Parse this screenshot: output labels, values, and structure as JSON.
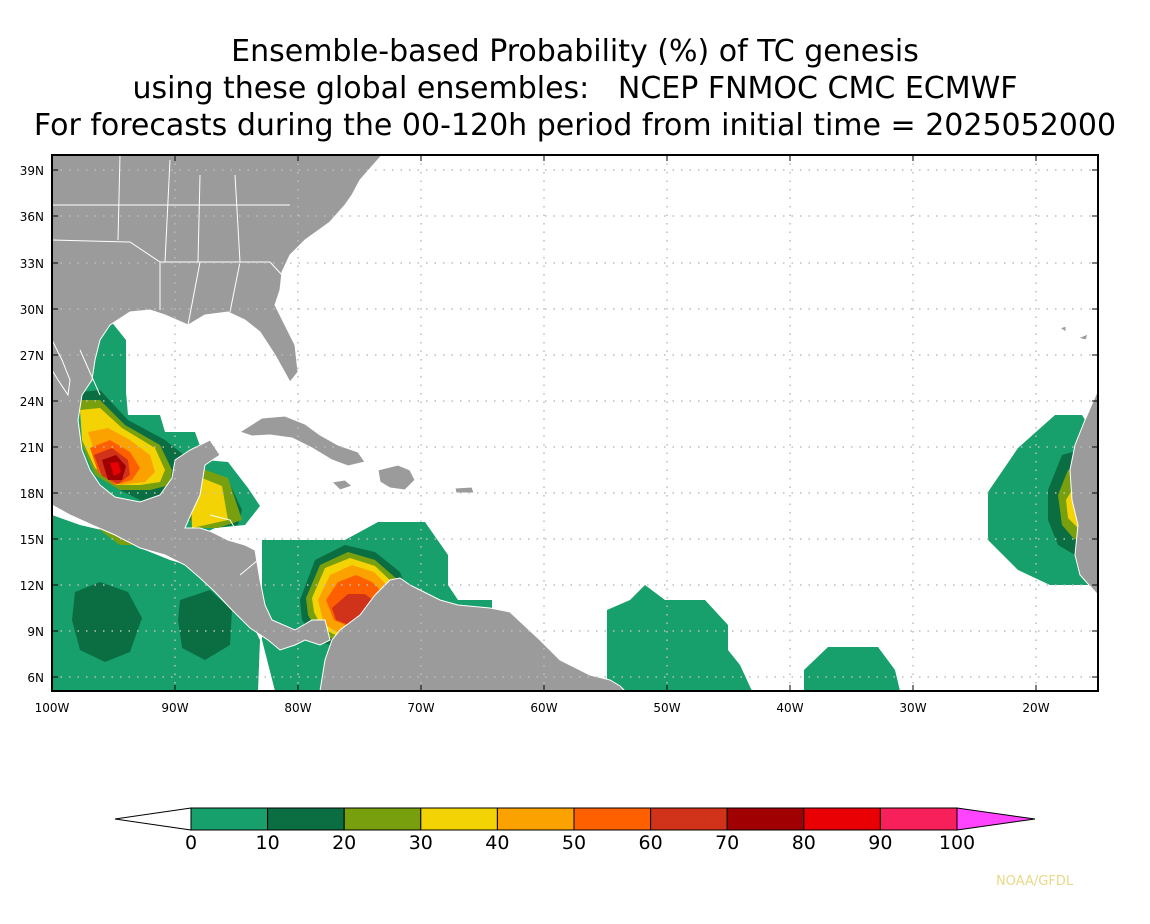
{
  "title": {
    "line1": "Ensemble-based Probability (%) of TC genesis",
    "line2": "using these global ensembles:   NCEP FNMOC CMC ECMWF",
    "line3": "For forecasts during the 00-120h period from initial time = 2025052000"
  },
  "map": {
    "lon_range": [
      -100,
      -15
    ],
    "lat_range": [
      5,
      40
    ],
    "lat_ticks": [
      "39N",
      "36N",
      "33N",
      "30N",
      "27N",
      "24N",
      "21N",
      "18N",
      "15N",
      "12N",
      "9N",
      "6N"
    ],
    "lon_ticks": [
      "100W",
      "90W",
      "80W",
      "70W",
      "60W",
      "50W",
      "40W",
      "30W",
      "20W"
    ],
    "colors": {
      "land": "#9b9b9b",
      "ocean": "#ffffff",
      "border": "#ffffff",
      "grid": "#bdbdbd"
    }
  },
  "colorbar": {
    "labels": [
      "0",
      "10",
      "20",
      "30",
      "40",
      "50",
      "60",
      "70",
      "80",
      "90",
      "100"
    ],
    "colors": [
      "#17a06b",
      "#0b6e43",
      "#78a00e",
      "#f4d305",
      "#fca200",
      "#fe6000",
      "#d0321a",
      "#a00002",
      "#e80004",
      "#f8205a"
    ],
    "under_color": "#ffffff",
    "over_color": "#ff44ff"
  },
  "credit": "NOAA/GFDL"
}
